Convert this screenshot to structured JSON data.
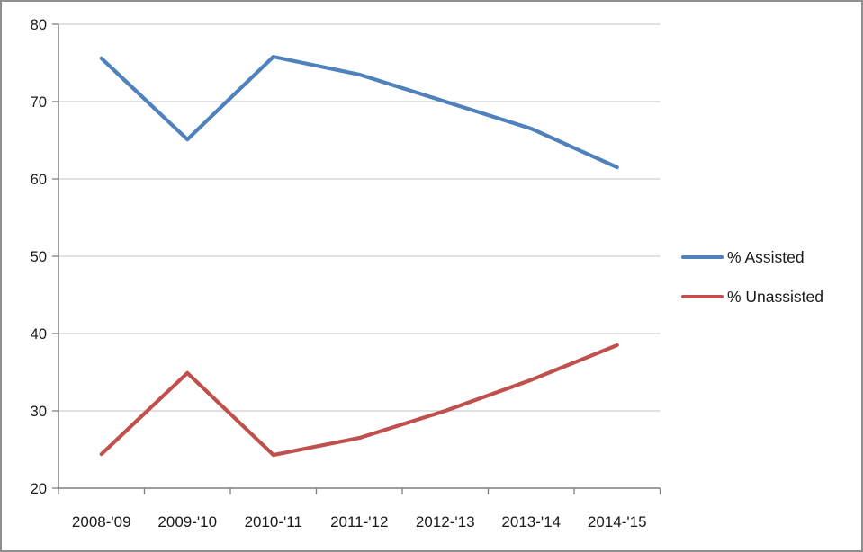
{
  "window": {
    "background_color": "#ffffff",
    "border_color": "#8f8f8f"
  },
  "chart_data": {
    "type": "line",
    "title": "",
    "xlabel": "",
    "ylabel": "",
    "categories": [
      "2008-'09",
      "2009-'10",
      "2010-'11",
      "2011-'12",
      "2012-'13",
      "2013-'14",
      "2014-'15"
    ],
    "series": [
      {
        "name": "% Assisted",
        "color": "#4F81BD",
        "values": [
          75.6,
          65.1,
          75.8,
          73.5,
          70.0,
          66.5,
          61.5
        ]
      },
      {
        "name": "% Unassisted",
        "color": "#C0504D",
        "values": [
          24.4,
          34.9,
          24.3,
          26.5,
          30.0,
          34.0,
          38.5
        ]
      }
    ],
    "ylim": [
      20,
      80
    ],
    "yticks": [
      20,
      30,
      40,
      50,
      60,
      70,
      80
    ],
    "grid": true,
    "legend_position": "right",
    "gridline_color": "#C3C3C3",
    "axis_color": "#7F7F7F",
    "tick_color": "#7F7F7F",
    "text_color": "#1a1a1a"
  }
}
